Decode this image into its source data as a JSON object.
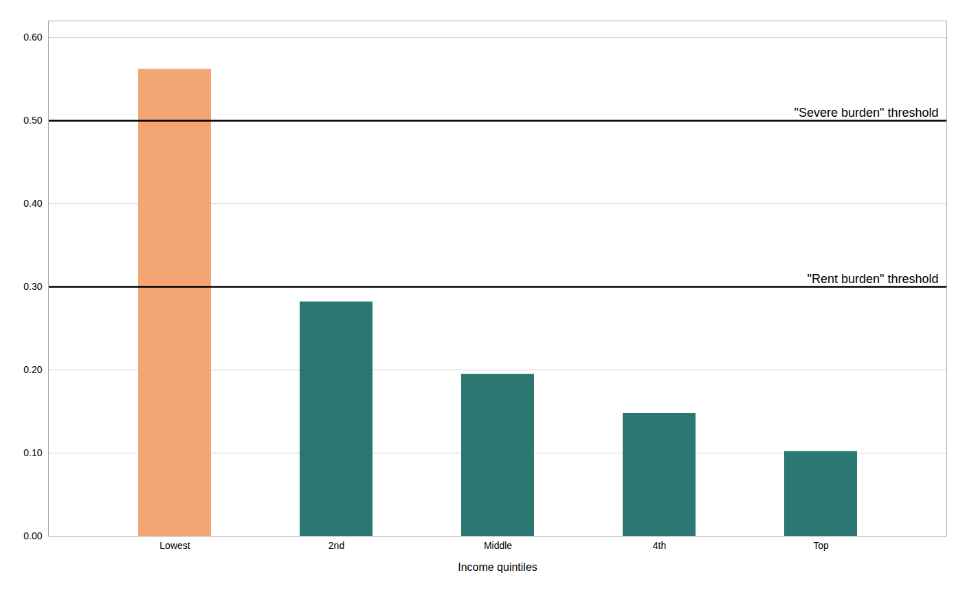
{
  "chart_data": {
    "type": "bar",
    "xlabel": "Income quintiles",
    "categories": [
      "Lowest",
      "2nd",
      "Middle",
      "4th",
      "Top"
    ],
    "values": [
      0.562,
      0.282,
      0.195,
      0.148,
      0.102
    ],
    "colors": [
      "#F4A574",
      "#2B7872",
      "#2B7872",
      "#2B7872",
      "#2B7872"
    ],
    "ylim": [
      0.0,
      0.62
    ],
    "yticks": [
      {
        "value": 0.0,
        "label": "0.00"
      },
      {
        "value": 0.1,
        "label": "0.10"
      },
      {
        "value": 0.2,
        "label": "0.20"
      },
      {
        "value": 0.3,
        "label": "0.30"
      },
      {
        "value": 0.4,
        "label": "0.40"
      },
      {
        "value": 0.5,
        "label": "0.50"
      },
      {
        "value": 0.6,
        "label": "0.60"
      }
    ],
    "grid": true,
    "annotations": [
      {
        "text": "\"Severe burden\" threshold",
        "y": 0.5
      },
      {
        "text": "\"Rent burden\" threshold",
        "y": 0.3
      }
    ]
  }
}
